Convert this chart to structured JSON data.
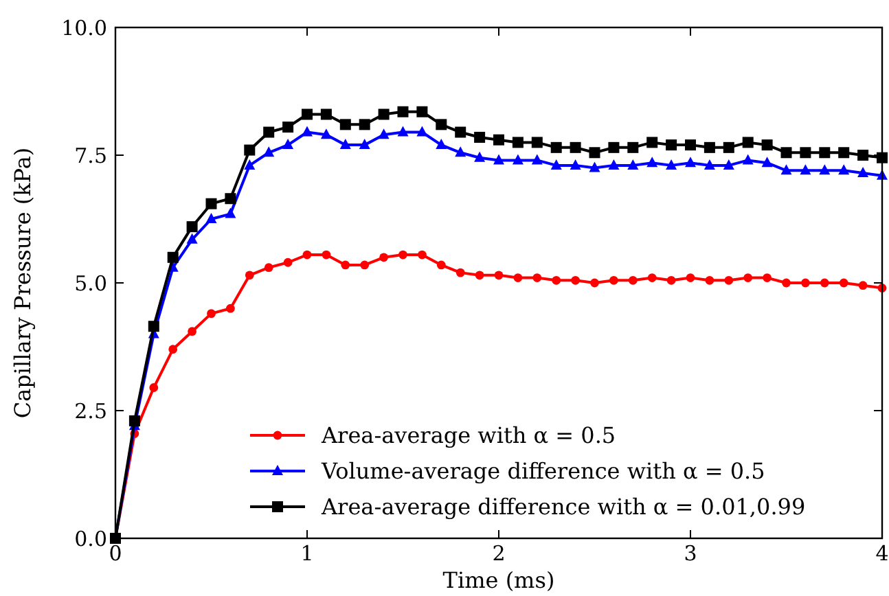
{
  "chart_data": {
    "type": "line",
    "xlabel": "Time (ms)",
    "ylabel": "Capillary Pressure (kPa)",
    "x": [
      0,
      0.1,
      0.2,
      0.3,
      0.4,
      0.5,
      0.6,
      0.7,
      0.8,
      0.9,
      1.0,
      1.1,
      1.2,
      1.3,
      1.4,
      1.5,
      1.6,
      1.7,
      1.8,
      1.9,
      2.0,
      2.1,
      2.2,
      2.3,
      2.4,
      2.5,
      2.6,
      2.7,
      2.8,
      2.9,
      3.0,
      3.1,
      3.2,
      3.3,
      3.4,
      3.5,
      3.6,
      3.7,
      3.8,
      3.9,
      4.0
    ],
    "xlim": [
      0,
      4
    ],
    "xticks": [
      0,
      1,
      2,
      3,
      4
    ],
    "ylim": [
      0,
      10
    ],
    "yticks": [
      {
        "value": 0,
        "label": "0.0"
      },
      {
        "value": 2.5,
        "label": "2.5"
      },
      {
        "value": 5,
        "label": "5.0"
      },
      {
        "value": 7.5,
        "label": "7.5"
      },
      {
        "value": 10,
        "label": "10.0"
      }
    ],
    "grid": false,
    "legend": "bottom right",
    "line_style": "solid",
    "series": [
      {
        "name": "Area-average with α = 0.5",
        "color": "#ff0000",
        "marker": "circle",
        "values": [
          0,
          2.05,
          2.95,
          3.7,
          4.05,
          4.4,
          4.5,
          5.15,
          5.3,
          5.4,
          5.55,
          5.55,
          5.35,
          5.35,
          5.5,
          5.55,
          5.55,
          5.35,
          5.2,
          5.15,
          5.15,
          5.1,
          5.1,
          5.05,
          5.05,
          5.0,
          5.05,
          5.05,
          5.1,
          5.05,
          5.1,
          5.05,
          5.05,
          5.1,
          5.1,
          5.0,
          5.0,
          5.0,
          5.0,
          4.95,
          4.9
        ]
      },
      {
        "name": "Volume-average difference with α = 0.5",
        "color": "#0000ff",
        "marker": "triangle",
        "values": [
          0,
          2.2,
          4.0,
          5.3,
          5.85,
          6.25,
          6.35,
          7.3,
          7.55,
          7.7,
          7.95,
          7.9,
          7.7,
          7.7,
          7.9,
          7.95,
          7.95,
          7.7,
          7.55,
          7.45,
          7.4,
          7.4,
          7.4,
          7.3,
          7.3,
          7.25,
          7.3,
          7.3,
          7.35,
          7.3,
          7.35,
          7.3,
          7.3,
          7.4,
          7.35,
          7.2,
          7.2,
          7.2,
          7.2,
          7.15,
          7.1
        ]
      },
      {
        "name": "Area-average difference with α = 0.01,0.99",
        "color": "#000000",
        "marker": "square",
        "values": [
          0,
          2.3,
          4.15,
          5.5,
          6.1,
          6.55,
          6.65,
          7.6,
          7.95,
          8.05,
          8.3,
          8.3,
          8.1,
          8.1,
          8.3,
          8.35,
          8.35,
          8.1,
          7.95,
          7.85,
          7.8,
          7.75,
          7.75,
          7.65,
          7.65,
          7.55,
          7.65,
          7.65,
          7.75,
          7.7,
          7.7,
          7.65,
          7.65,
          7.75,
          7.7,
          7.55,
          7.55,
          7.55,
          7.55,
          7.5,
          7.45
        ]
      }
    ]
  }
}
